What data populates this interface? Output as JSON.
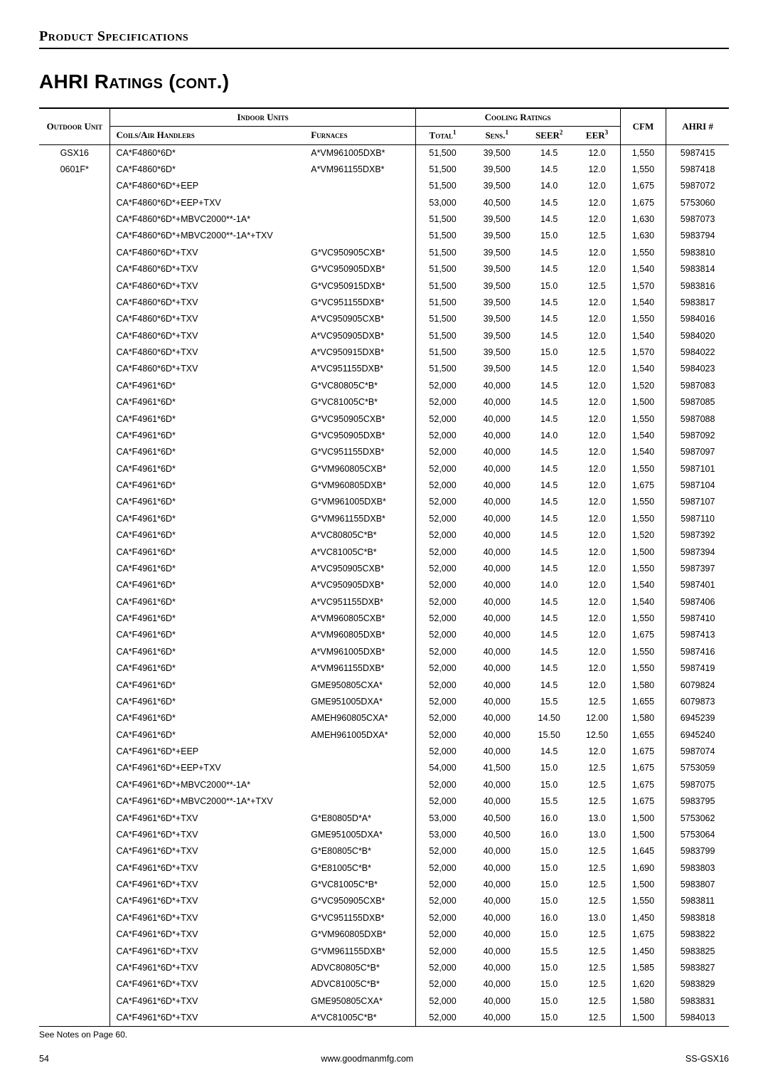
{
  "section_header": "Product Specifications",
  "page_title": "AHRI Ratings (cont.)",
  "headers": {
    "outdoor_unit": "Outdoor Unit",
    "indoor_units": "Indoor Units",
    "cooling_ratings": "Cooling Ratings",
    "coils": "Coils/Air Handlers",
    "furnaces": "Furnaces",
    "total": "Total",
    "sens": "Sens.",
    "seer": "SEER",
    "eer": "EER",
    "cfm": "CFM",
    "ahri": "AHRI #",
    "sup1": "1",
    "sup2": "2",
    "sup3": "3"
  },
  "outdoor": {
    "line1": "GSX16",
    "line2": "0601F*"
  },
  "rows": [
    {
      "c": "CA*F4860*6D*",
      "f": "A*VM961005DXB*",
      "t": "51,500",
      "s": "39,500",
      "seer": "14.5",
      "eer": "12.0",
      "cfm": "1,550",
      "a": "5987415"
    },
    {
      "c": "CA*F4860*6D*",
      "f": "A*VM961155DXB*",
      "t": "51,500",
      "s": "39,500",
      "seer": "14.5",
      "eer": "12.0",
      "cfm": "1,550",
      "a": "5987418"
    },
    {
      "c": "CA*F4860*6D*+EEP",
      "f": "",
      "t": "51,500",
      "s": "39,500",
      "seer": "14.0",
      "eer": "12.0",
      "cfm": "1,675",
      "a": "5987072"
    },
    {
      "c": "CA*F4860*6D*+EEP+TXV",
      "f": "",
      "t": "53,000",
      "s": "40,500",
      "seer": "14.5",
      "eer": "12.0",
      "cfm": "1,675",
      "a": "5753060"
    },
    {
      "c": "CA*F4860*6D*+MBVC2000**-1A*",
      "f": "",
      "t": "51,500",
      "s": "39,500",
      "seer": "14.5",
      "eer": "12.0",
      "cfm": "1,630",
      "a": "5987073"
    },
    {
      "c": "CA*F4860*6D*+MBVC2000**-1A*+TXV",
      "f": "",
      "t": "51,500",
      "s": "39,500",
      "seer": "15.0",
      "eer": "12.5",
      "cfm": "1,630",
      "a": "5983794"
    },
    {
      "c": "CA*F4860*6D*+TXV",
      "f": "G*VC950905CXB*",
      "t": "51,500",
      "s": "39,500",
      "seer": "14.5",
      "eer": "12.0",
      "cfm": "1,550",
      "a": "5983810"
    },
    {
      "c": "CA*F4860*6D*+TXV",
      "f": "G*VC950905DXB*",
      "t": "51,500",
      "s": "39,500",
      "seer": "14.5",
      "eer": "12.0",
      "cfm": "1,540",
      "a": "5983814"
    },
    {
      "c": "CA*F4860*6D*+TXV",
      "f": "G*VC950915DXB*",
      "t": "51,500",
      "s": "39,500",
      "seer": "15.0",
      "eer": "12.5",
      "cfm": "1,570",
      "a": "5983816"
    },
    {
      "c": "CA*F4860*6D*+TXV",
      "f": "G*VC951155DXB*",
      "t": "51,500",
      "s": "39,500",
      "seer": "14.5",
      "eer": "12.0",
      "cfm": "1,540",
      "a": "5983817"
    },
    {
      "c": "CA*F4860*6D*+TXV",
      "f": "A*VC950905CXB*",
      "t": "51,500",
      "s": "39,500",
      "seer": "14.5",
      "eer": "12.0",
      "cfm": "1,550",
      "a": "5984016"
    },
    {
      "c": "CA*F4860*6D*+TXV",
      "f": "A*VC950905DXB*",
      "t": "51,500",
      "s": "39,500",
      "seer": "14.5",
      "eer": "12.0",
      "cfm": "1,540",
      "a": "5984020"
    },
    {
      "c": "CA*F4860*6D*+TXV",
      "f": "A*VC950915DXB*",
      "t": "51,500",
      "s": "39,500",
      "seer": "15.0",
      "eer": "12.5",
      "cfm": "1,570",
      "a": "5984022"
    },
    {
      "c": "CA*F4860*6D*+TXV",
      "f": "A*VC951155DXB*",
      "t": "51,500",
      "s": "39,500",
      "seer": "14.5",
      "eer": "12.0",
      "cfm": "1,540",
      "a": "5984023"
    },
    {
      "c": "CA*F4961*6D*",
      "f": "G*VC80805C*B*",
      "t": "52,000",
      "s": "40,000",
      "seer": "14.5",
      "eer": "12.0",
      "cfm": "1,520",
      "a": "5987083"
    },
    {
      "c": "CA*F4961*6D*",
      "f": "G*VC81005C*B*",
      "t": "52,000",
      "s": "40,000",
      "seer": "14.5",
      "eer": "12.0",
      "cfm": "1,500",
      "a": "5987085"
    },
    {
      "c": "CA*F4961*6D*",
      "f": "G*VC950905CXB*",
      "t": "52,000",
      "s": "40,000",
      "seer": "14.5",
      "eer": "12.0",
      "cfm": "1,550",
      "a": "5987088"
    },
    {
      "c": "CA*F4961*6D*",
      "f": "G*VC950905DXB*",
      "t": "52,000",
      "s": "40,000",
      "seer": "14.0",
      "eer": "12.0",
      "cfm": "1,540",
      "a": "5987092"
    },
    {
      "c": "CA*F4961*6D*",
      "f": "G*VC951155DXB*",
      "t": "52,000",
      "s": "40,000",
      "seer": "14.5",
      "eer": "12.0",
      "cfm": "1,540",
      "a": "5987097"
    },
    {
      "c": "CA*F4961*6D*",
      "f": "G*VM960805CXB*",
      "t": "52,000",
      "s": "40,000",
      "seer": "14.5",
      "eer": "12.0",
      "cfm": "1,550",
      "a": "5987101"
    },
    {
      "c": "CA*F4961*6D*",
      "f": "G*VM960805DXB*",
      "t": "52,000",
      "s": "40,000",
      "seer": "14.5",
      "eer": "12.0",
      "cfm": "1,675",
      "a": "5987104"
    },
    {
      "c": "CA*F4961*6D*",
      "f": "G*VM961005DXB*",
      "t": "52,000",
      "s": "40,000",
      "seer": "14.5",
      "eer": "12.0",
      "cfm": "1,550",
      "a": "5987107"
    },
    {
      "c": "CA*F4961*6D*",
      "f": "G*VM961155DXB*",
      "t": "52,000",
      "s": "40,000",
      "seer": "14.5",
      "eer": "12.0",
      "cfm": "1,550",
      "a": "5987110"
    },
    {
      "c": "CA*F4961*6D*",
      "f": "A*VC80805C*B*",
      "t": "52,000",
      "s": "40,000",
      "seer": "14.5",
      "eer": "12.0",
      "cfm": "1,520",
      "a": "5987392"
    },
    {
      "c": "CA*F4961*6D*",
      "f": "A*VC81005C*B*",
      "t": "52,000",
      "s": "40,000",
      "seer": "14.5",
      "eer": "12.0",
      "cfm": "1,500",
      "a": "5987394"
    },
    {
      "c": "CA*F4961*6D*",
      "f": "A*VC950905CXB*",
      "t": "52,000",
      "s": "40,000",
      "seer": "14.5",
      "eer": "12.0",
      "cfm": "1,550",
      "a": "5987397"
    },
    {
      "c": "CA*F4961*6D*",
      "f": "A*VC950905DXB*",
      "t": "52,000",
      "s": "40,000",
      "seer": "14.0",
      "eer": "12.0",
      "cfm": "1,540",
      "a": "5987401"
    },
    {
      "c": "CA*F4961*6D*",
      "f": "A*VC951155DXB*",
      "t": "52,000",
      "s": "40,000",
      "seer": "14.5",
      "eer": "12.0",
      "cfm": "1,540",
      "a": "5987406"
    },
    {
      "c": "CA*F4961*6D*",
      "f": "A*VM960805CXB*",
      "t": "52,000",
      "s": "40,000",
      "seer": "14.5",
      "eer": "12.0",
      "cfm": "1,550",
      "a": "5987410"
    },
    {
      "c": "CA*F4961*6D*",
      "f": "A*VM960805DXB*",
      "t": "52,000",
      "s": "40,000",
      "seer": "14.5",
      "eer": "12.0",
      "cfm": "1,675",
      "a": "5987413"
    },
    {
      "c": "CA*F4961*6D*",
      "f": "A*VM961005DXB*",
      "t": "52,000",
      "s": "40,000",
      "seer": "14.5",
      "eer": "12.0",
      "cfm": "1,550",
      "a": "5987416"
    },
    {
      "c": "CA*F4961*6D*",
      "f": "A*VM961155DXB*",
      "t": "52,000",
      "s": "40,000",
      "seer": "14.5",
      "eer": "12.0",
      "cfm": "1,550",
      "a": "5987419"
    },
    {
      "c": "CA*F4961*6D*",
      "f": "GME950805CXA*",
      "t": "52,000",
      "s": "40,000",
      "seer": "14.5",
      "eer": "12.0",
      "cfm": "1,580",
      "a": "6079824"
    },
    {
      "c": "CA*F4961*6D*",
      "f": "GME951005DXA*",
      "t": "52,000",
      "s": "40,000",
      "seer": "15.5",
      "eer": "12.5",
      "cfm": "1,655",
      "a": "6079873"
    },
    {
      "c": "CA*F4961*6D*",
      "f": "AMEH960805CXA*",
      "t": "52,000",
      "s": "40,000",
      "seer": "14.50",
      "eer": "12.00",
      "cfm": "1,580",
      "a": "6945239"
    },
    {
      "c": "CA*F4961*6D*",
      "f": "AMEH961005DXA*",
      "t": "52,000",
      "s": "40,000",
      "seer": "15.50",
      "eer": "12.50",
      "cfm": "1,655",
      "a": "6945240"
    },
    {
      "c": "CA*F4961*6D*+EEP",
      "f": "",
      "t": "52,000",
      "s": "40,000",
      "seer": "14.5",
      "eer": "12.0",
      "cfm": "1,675",
      "a": "5987074"
    },
    {
      "c": "CA*F4961*6D*+EEP+TXV",
      "f": "",
      "t": "54,000",
      "s": "41,500",
      "seer": "15.0",
      "eer": "12.5",
      "cfm": "1,675",
      "a": "5753059"
    },
    {
      "c": "CA*F4961*6D*+MBVC2000**-1A*",
      "f": "",
      "t": "52,000",
      "s": "40,000",
      "seer": "15.0",
      "eer": "12.5",
      "cfm": "1,675",
      "a": "5987075"
    },
    {
      "c": "CA*F4961*6D*+MBVC2000**-1A*+TXV",
      "f": "",
      "t": "52,000",
      "s": "40,000",
      "seer": "15.5",
      "eer": "12.5",
      "cfm": "1,675",
      "a": "5983795"
    },
    {
      "c": "CA*F4961*6D*+TXV",
      "f": "G*E80805D*A*",
      "t": "53,000",
      "s": "40,500",
      "seer": "16.0",
      "eer": "13.0",
      "cfm": "1,500",
      "a": "5753062"
    },
    {
      "c": "CA*F4961*6D*+TXV",
      "f": "GME951005DXA*",
      "t": "53,000",
      "s": "40,500",
      "seer": "16.0",
      "eer": "13.0",
      "cfm": "1,500",
      "a": "5753064"
    },
    {
      "c": "CA*F4961*6D*+TXV",
      "f": "G*E80805C*B*",
      "t": "52,000",
      "s": "40,000",
      "seer": "15.0",
      "eer": "12.5",
      "cfm": "1,645",
      "a": "5983799"
    },
    {
      "c": "CA*F4961*6D*+TXV",
      "f": "G*E81005C*B*",
      "t": "52,000",
      "s": "40,000",
      "seer": "15.0",
      "eer": "12.5",
      "cfm": "1,690",
      "a": "5983803"
    },
    {
      "c": "CA*F4961*6D*+TXV",
      "f": "G*VC81005C*B*",
      "t": "52,000",
      "s": "40,000",
      "seer": "15.0",
      "eer": "12.5",
      "cfm": "1,500",
      "a": "5983807"
    },
    {
      "c": "CA*F4961*6D*+TXV",
      "f": "G*VC950905CXB*",
      "t": "52,000",
      "s": "40,000",
      "seer": "15.0",
      "eer": "12.5",
      "cfm": "1,550",
      "a": "5983811"
    },
    {
      "c": "CA*F4961*6D*+TXV",
      "f": "G*VC951155DXB*",
      "t": "52,000",
      "s": "40,000",
      "seer": "16.0",
      "eer": "13.0",
      "cfm": "1,450",
      "a": "5983818"
    },
    {
      "c": "CA*F4961*6D*+TXV",
      "f": "G*VM960805DXB*",
      "t": "52,000",
      "s": "40,000",
      "seer": "15.0",
      "eer": "12.5",
      "cfm": "1,675",
      "a": "5983822"
    },
    {
      "c": "CA*F4961*6D*+TXV",
      "f": "G*VM961155DXB*",
      "t": "52,000",
      "s": "40,000",
      "seer": "15.5",
      "eer": "12.5",
      "cfm": "1,450",
      "a": "5983825"
    },
    {
      "c": "CA*F4961*6D*+TXV",
      "f": "ADVC80805C*B*",
      "t": "52,000",
      "s": "40,000",
      "seer": "15.0",
      "eer": "12.5",
      "cfm": "1,585",
      "a": "5983827"
    },
    {
      "c": "CA*F4961*6D*+TXV",
      "f": "ADVC81005C*B*",
      "t": "52,000",
      "s": "40,000",
      "seer": "15.0",
      "eer": "12.5",
      "cfm": "1,620",
      "a": "5983829"
    },
    {
      "c": "CA*F4961*6D*+TXV",
      "f": "GME950805CXA*",
      "t": "52,000",
      "s": "40,000",
      "seer": "15.0",
      "eer": "12.5",
      "cfm": "1,580",
      "a": "5983831"
    },
    {
      "c": "CA*F4961*6D*+TXV",
      "f": "A*VC81005C*B*",
      "t": "52,000",
      "s": "40,000",
      "seer": "15.0",
      "eer": "12.5",
      "cfm": "1,500",
      "a": "5984013"
    }
  ],
  "footnote": "See Notes on Page 60.",
  "footer": {
    "page": "54",
    "url": "www.goodmanmfg.com",
    "doc": "SS-GSX16"
  }
}
